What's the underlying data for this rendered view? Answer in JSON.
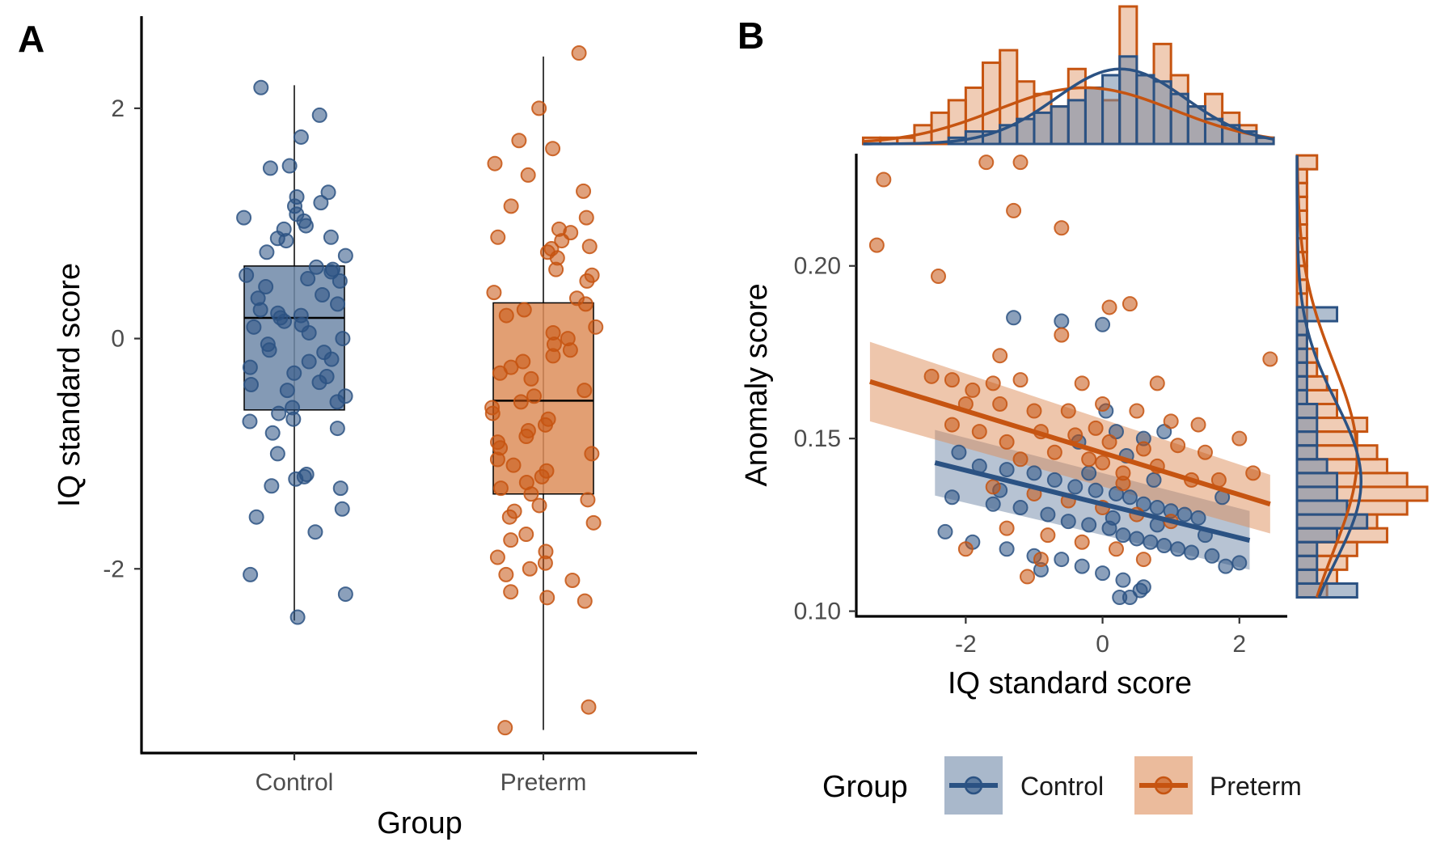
{
  "colors": {
    "control": "#2b5283",
    "preterm": "#c65411",
    "control_fill": "#6f88a8",
    "preterm_fill": "#dd8e5a"
  },
  "chart_data": [
    {
      "panel": "A",
      "type": "box",
      "title": "",
      "xlabel": "Group",
      "ylabel": "IQ standard score",
      "categories": [
        "Control",
        "Preterm"
      ],
      "ylim": [
        -3.6,
        2.8
      ],
      "yticks": [
        2,
        0,
        -2
      ],
      "ytick_labels": [
        "2",
        "0",
        "-2"
      ],
      "boxes": [
        {
          "name": "Control",
          "q1": -0.62,
          "median": 0.18,
          "q3": 0.63,
          "whisker_low": -2.45,
          "whisker_high": 2.2
        },
        {
          "name": "Preterm",
          "q1": -1.35,
          "median": -0.54,
          "q3": 0.31,
          "whisker_low": -3.4,
          "whisker_high": 2.45
        }
      ],
      "points": {
        "Control": [
          2.18,
          1.94,
          1.75,
          1.5,
          1.48,
          1.27,
          1.18,
          1.15,
          1.23,
          1.08,
          1.05,
          1.02,
          0.98,
          0.95,
          0.88,
          0.87,
          0.85,
          0.75,
          0.72,
          0.62,
          0.6,
          0.58,
          0.55,
          0.52,
          0.5,
          0.45,
          0.38,
          0.35,
          0.3,
          0.25,
          0.22,
          0.2,
          0.18,
          0.15,
          0.12,
          0.1,
          0.05,
          0.0,
          -0.05,
          -0.1,
          -0.12,
          -0.18,
          -0.2,
          -0.25,
          -0.3,
          -0.33,
          -0.38,
          -0.4,
          -0.45,
          -0.5,
          -0.55,
          -0.6,
          -0.65,
          -0.7,
          -0.72,
          -0.78,
          -0.82,
          -1.0,
          -1.18,
          -1.2,
          -1.22,
          -1.28,
          -1.3,
          -1.48,
          -1.55,
          -1.68,
          -2.05,
          -2.22,
          -2.42
        ],
        "Preterm": [
          2.48,
          2.0,
          1.72,
          1.65,
          1.52,
          1.42,
          1.28,
          1.15,
          1.05,
          0.95,
          0.92,
          0.88,
          0.85,
          0.8,
          0.78,
          0.75,
          0.7,
          0.6,
          0.55,
          0.5,
          0.4,
          0.35,
          0.3,
          0.25,
          0.2,
          0.1,
          0.05,
          0.0,
          -0.05,
          -0.1,
          -0.15,
          -0.2,
          -0.25,
          -0.3,
          -0.35,
          -0.45,
          -0.5,
          -0.55,
          -0.6,
          -0.65,
          -0.7,
          -0.75,
          -0.8,
          -0.85,
          -0.9,
          -0.95,
          -1.0,
          -1.05,
          -1.1,
          -1.15,
          -1.2,
          -1.25,
          -1.3,
          -1.35,
          -1.4,
          -1.45,
          -1.5,
          -1.55,
          -1.6,
          -1.7,
          -1.75,
          -1.85,
          -1.9,
          -1.95,
          -2.0,
          -2.05,
          -2.1,
          -2.2,
          -2.25,
          -2.28,
          -3.2,
          -3.38
        ]
      }
    },
    {
      "panel": "B",
      "type": "scatter",
      "title": "",
      "xlabel": "IQ standard score",
      "ylabel": "Anomaly score",
      "xlim": [
        -3.6,
        2.7
      ],
      "ylim": [
        0.0985,
        0.2325
      ],
      "xticks": [
        -2,
        0,
        2
      ],
      "xtick_labels": [
        "-2",
        "0",
        "2"
      ],
      "yticks": [
        0.2,
        0.15,
        0.1
      ],
      "ytick_labels": [
        "0.20",
        "0.15",
        "0.10"
      ],
      "series": [
        {
          "name": "Control",
          "points": [
            [
              0.0,
              0.183
            ],
            [
              -1.3,
              0.185
            ],
            [
              -0.6,
              0.184
            ],
            [
              0.05,
              0.158
            ],
            [
              0.2,
              0.152
            ],
            [
              0.6,
              0.15
            ],
            [
              0.9,
              0.152
            ],
            [
              -2.1,
              0.146
            ],
            [
              -1.8,
              0.142
            ],
            [
              -1.4,
              0.141
            ],
            [
              -1.0,
              0.14
            ],
            [
              -0.7,
              0.138
            ],
            [
              -0.4,
              0.136
            ],
            [
              -0.1,
              0.135
            ],
            [
              0.2,
              0.134
            ],
            [
              0.4,
              0.133
            ],
            [
              0.6,
              0.131
            ],
            [
              0.8,
              0.13
            ],
            [
              1.0,
              0.129
            ],
            [
              1.2,
              0.128
            ],
            [
              1.4,
              0.127
            ],
            [
              -2.2,
              0.133
            ],
            [
              -1.6,
              0.131
            ],
            [
              -1.2,
              0.13
            ],
            [
              -0.8,
              0.128
            ],
            [
              -0.5,
              0.126
            ],
            [
              -0.2,
              0.125
            ],
            [
              0.1,
              0.124
            ],
            [
              0.3,
              0.122
            ],
            [
              0.5,
              0.121
            ],
            [
              0.7,
              0.12
            ],
            [
              0.9,
              0.119
            ],
            [
              1.1,
              0.118
            ],
            [
              1.3,
              0.117
            ],
            [
              1.6,
              0.116
            ],
            [
              1.8,
              0.113
            ],
            [
              2.0,
              0.114
            ],
            [
              -1.9,
              0.12
            ],
            [
              -1.4,
              0.118
            ],
            [
              -1.0,
              0.116
            ],
            [
              -0.6,
              0.115
            ],
            [
              -0.3,
              0.113
            ],
            [
              0.0,
              0.111
            ],
            [
              0.3,
              0.109
            ],
            [
              0.6,
              0.107
            ],
            [
              0.25,
              0.104
            ],
            [
              0.4,
              0.104
            ],
            [
              0.55,
              0.106
            ],
            [
              -2.3,
              0.123
            ],
            [
              -0.9,
              0.112
            ],
            [
              0.8,
              0.125
            ],
            [
              1.5,
              0.122
            ],
            [
              -0.2,
              0.14
            ],
            [
              0.35,
              0.145
            ],
            [
              0.75,
              0.138
            ],
            [
              -1.5,
              0.135
            ],
            [
              -0.35,
              0.149
            ],
            [
              0.15,
              0.127
            ],
            [
              1.75,
              0.133
            ]
          ]
        },
        {
          "name": "Preterm",
          "points": [
            [
              -3.3,
              0.206
            ],
            [
              -3.2,
              0.225
            ],
            [
              -1.7,
              0.23
            ],
            [
              -1.2,
              0.23
            ],
            [
              -1.3,
              0.216
            ],
            [
              -0.6,
              0.211
            ],
            [
              -2.4,
              0.197
            ],
            [
              0.4,
              0.189
            ],
            [
              0.1,
              0.188
            ],
            [
              -0.6,
              0.18
            ],
            [
              -1.5,
              0.174
            ],
            [
              2.45,
              0.173
            ],
            [
              -2.5,
              0.168
            ],
            [
              -2.2,
              0.167
            ],
            [
              -1.9,
              0.164
            ],
            [
              -1.6,
              0.166
            ],
            [
              -1.2,
              0.167
            ],
            [
              -0.3,
              0.166
            ],
            [
              0.8,
              0.166
            ],
            [
              -2.0,
              0.16
            ],
            [
              -1.5,
              0.16
            ],
            [
              -1.0,
              0.158
            ],
            [
              -0.5,
              0.158
            ],
            [
              0.0,
              0.16
            ],
            [
              0.5,
              0.158
            ],
            [
              1.0,
              0.155
            ],
            [
              1.4,
              0.154
            ],
            [
              -2.2,
              0.154
            ],
            [
              -1.8,
              0.152
            ],
            [
              -1.4,
              0.149
            ],
            [
              -0.9,
              0.152
            ],
            [
              -0.4,
              0.151
            ],
            [
              0.1,
              0.149
            ],
            [
              0.6,
              0.147
            ],
            [
              1.1,
              0.148
            ],
            [
              1.5,
              0.146
            ],
            [
              2.0,
              0.15
            ],
            [
              -1.2,
              0.144
            ],
            [
              -0.7,
              0.146
            ],
            [
              -0.2,
              0.144
            ],
            [
              0.3,
              0.14
            ],
            [
              0.8,
              0.142
            ],
            [
              1.3,
              0.138
            ],
            [
              -1.6,
              0.136
            ],
            [
              -1.0,
              0.134
            ],
            [
              -0.5,
              0.132
            ],
            [
              0.0,
              0.13
            ],
            [
              0.5,
              0.128
            ],
            [
              1.0,
              0.126
            ],
            [
              -1.4,
              0.124
            ],
            [
              -0.8,
              0.122
            ],
            [
              -0.3,
              0.12
            ],
            [
              0.2,
              0.118
            ],
            [
              -2.0,
              0.118
            ],
            [
              -1.1,
              0.11
            ],
            [
              -0.9,
              0.115
            ],
            [
              0.6,
              0.115
            ],
            [
              2.2,
              0.14
            ],
            [
              1.7,
              0.138
            ],
            [
              0.0,
              0.143
            ],
            [
              0.3,
              0.137
            ],
            [
              -0.1,
              0.153
            ]
          ]
        }
      ],
      "fits": [
        {
          "name": "Control",
          "x": [
            -2.45,
            2.15
          ],
          "y": [
            0.143,
            0.1205
          ],
          "ci_half_width": [
            0.0095,
            0.0085
          ]
        },
        {
          "name": "Preterm",
          "x": [
            -3.4,
            2.45
          ],
          "y": [
            0.1665,
            0.131
          ],
          "ci_half_width": [
            0.0115,
            0.0085
          ]
        }
      ],
      "marginal_x": {
        "bins": [
          -3.5,
          -3.25,
          -3.0,
          -2.75,
          -2.5,
          -2.25,
          -2.0,
          -1.75,
          -1.5,
          -1.25,
          -1.0,
          -0.75,
          -0.5,
          -0.25,
          0.0,
          0.25,
          0.5,
          0.75,
          1.0,
          1.25,
          1.5,
          1.75,
          2.0,
          2.25,
          2.5
        ],
        "Control": [
          0,
          0,
          0,
          0,
          0,
          0.5,
          1,
          1,
          1.5,
          2,
          2.5,
          3,
          3.5,
          4.5,
          5.5,
          7,
          5.5,
          5,
          4,
          3,
          2,
          1.5,
          1,
          0.5
        ],
        "Preterm": [
          0.5,
          0.5,
          0.5,
          1.5,
          2.5,
          3.5,
          4.5,
          6.5,
          7.5,
          5,
          4,
          3,
          6,
          4.5,
          3.5,
          11,
          5.5,
          8,
          5.5,
          3,
          4,
          2.5,
          1.5,
          0.5
        ]
      },
      "marginal_y": {
        "bins": [
          0.104,
          0.108,
          0.112,
          0.116,
          0.12,
          0.124,
          0.128,
          0.132,
          0.136,
          0.14,
          0.144,
          0.148,
          0.152,
          0.156,
          0.16,
          0.164,
          0.168,
          0.172,
          0.176,
          0.18,
          0.184,
          0.188,
          0.192,
          0.196,
          0.2,
          0.204,
          0.208,
          0.212,
          0.216,
          0.22,
          0.224,
          0.228
        ],
        "Control": [
          3,
          1,
          1,
          1,
          2,
          3.5,
          2.5,
          2,
          2,
          1.5,
          1,
          1,
          1,
          1,
          0.5,
          0.5,
          0.5,
          0.5,
          0.5,
          0.5,
          2,
          0,
          0,
          0,
          0,
          0,
          0,
          0,
          0,
          0,
          0,
          0
        ],
        "Preterm": [
          1.5,
          2,
          2.5,
          3,
          4.5,
          4,
          5.5,
          6.5,
          5.5,
          4.5,
          4,
          3,
          3.5,
          2,
          2,
          1.5,
          1,
          1,
          0.5,
          0.5,
          0.5,
          0.5,
          0.5,
          0.5,
          0.5,
          0.5,
          0.5,
          0.5,
          0.5,
          0.5,
          0.5,
          1
        ]
      },
      "legend": {
        "title": "Group",
        "entries": [
          "Control",
          "Preterm"
        ],
        "position": "bottom"
      }
    }
  ]
}
